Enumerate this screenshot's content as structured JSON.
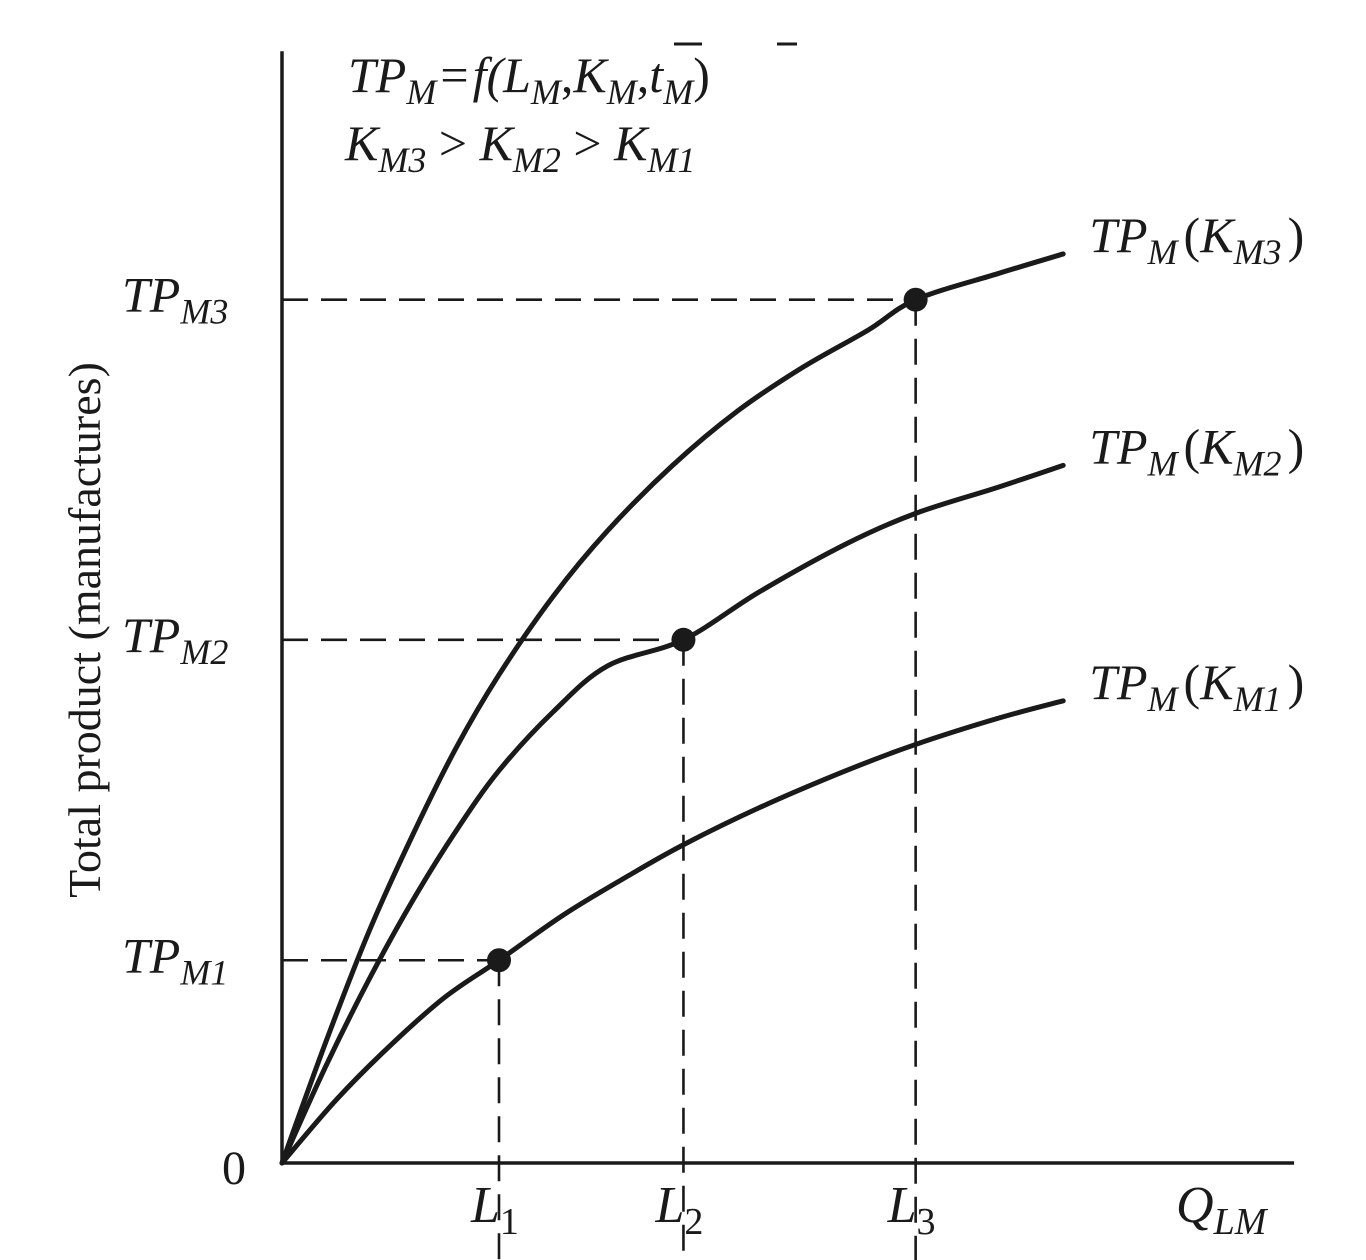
{
  "chart_data": {
    "type": "line",
    "title": {
      "function_line": {
        "lhs": "TP",
        "lhs_sub": "M",
        "eq": "=",
        "f": "f(",
        "L": "L",
        "L_sub": "M",
        "comma1": ",",
        "K": "K",
        "K_sub": "M",
        "comma2": ",",
        "t": "t",
        "t_sub": "M",
        "close": ")"
      },
      "inequality_line": {
        "K3": "K",
        "K3_sub": "M3",
        "gt1": " > ",
        "K2": "K",
        "K2_sub": "M2",
        "gt2": " > ",
        "K1": "K",
        "K1_sub": "M1"
      }
    },
    "ylabel": "Total product (manufactures)",
    "xlabel": {
      "main": "Q",
      "sub": "LM"
    },
    "origin_label": "0",
    "xlim": [
      0,
      4.4
    ],
    "ylim": [
      0,
      5.1
    ],
    "x_ticks": [
      {
        "x": 1.0,
        "main": "L",
        "sub": "1"
      },
      {
        "x": 1.85,
        "main": "L",
        "sub": "2"
      },
      {
        "x": 2.92,
        "main": "L",
        "sub": "3"
      }
    ],
    "y_ticks": [
      {
        "y": 0.93,
        "main": "TP",
        "sub": "M1"
      },
      {
        "y": 2.4,
        "main": "TP",
        "sub": "M2"
      },
      {
        "y": 3.96,
        "main": "TP",
        "sub": "M3"
      }
    ],
    "series": [
      {
        "name": "TP",
        "name_sub": "M",
        "name_paren_open": "(",
        "name_K": "K",
        "name_K_sub": "M1",
        "name_paren_close": ")",
        "x": [
          0,
          0.25,
          0.5,
          0.75,
          1.0,
          1.3,
          1.6,
          1.85,
          2.2,
          2.6,
          2.92,
          3.3,
          3.6
        ],
        "y": [
          0,
          0.29,
          0.54,
          0.76,
          0.93,
          1.14,
          1.32,
          1.46,
          1.63,
          1.8,
          1.92,
          2.04,
          2.12
        ]
      },
      {
        "name": "TP",
        "name_sub": "M",
        "name_paren_open": "(",
        "name_K": "K",
        "name_K_sub": "M2",
        "name_paren_close": ")",
        "x": [
          0,
          0.2,
          0.4,
          0.6,
          0.8,
          1.0,
          1.25,
          1.5,
          1.85,
          2.2,
          2.6,
          2.92,
          3.3,
          3.6
        ],
        "y": [
          0,
          0.44,
          0.84,
          1.2,
          1.52,
          1.8,
          2.07,
          2.28,
          2.4,
          2.62,
          2.84,
          2.98,
          3.1,
          3.2
        ]
      },
      {
        "name": "TP",
        "name_sub": "M",
        "name_paren_open": "(",
        "name_K": "K",
        "name_K_sub": "M3",
        "name_paren_close": ")",
        "x": [
          0,
          0.2,
          0.4,
          0.6,
          0.8,
          1.0,
          1.25,
          1.5,
          1.8,
          2.1,
          2.4,
          2.7,
          2.92,
          3.3,
          3.6
        ],
        "y": [
          0,
          0.55,
          1.06,
          1.5,
          1.9,
          2.24,
          2.6,
          2.9,
          3.2,
          3.45,
          3.65,
          3.82,
          3.96,
          4.08,
          4.17
        ]
      }
    ],
    "highlight_points": [
      {
        "series": 0,
        "x": 1.0,
        "y": 0.93
      },
      {
        "series": 1,
        "x": 1.85,
        "y": 2.4
      },
      {
        "series": 2,
        "x": 2.92,
        "y": 3.96
      }
    ],
    "grid": false,
    "legend": "curve labels at right end of each curve"
  }
}
